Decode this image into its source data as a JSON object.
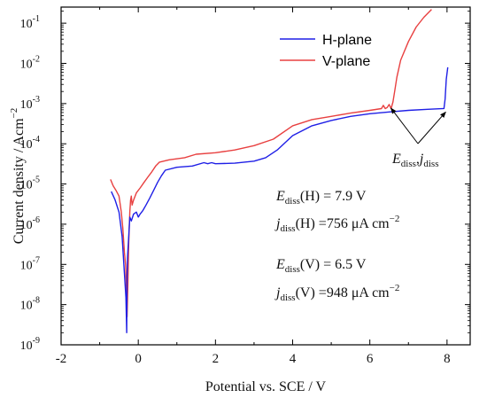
{
  "chart_data": {
    "type": "line",
    "title": "",
    "xlabel": "Potential vs. SCE / V",
    "ylabel": "Current density / Acm",
    "ylabel_sup": "−2",
    "xlim": [
      -2,
      8.6
    ],
    "ylim_log10": [
      -9,
      -0.6
    ],
    "yscale": "log",
    "legend_position": "top-right",
    "x_ticks": [
      -2,
      0,
      2,
      4,
      6,
      8
    ],
    "x_tick_labels": [
      "-2",
      "0",
      "2",
      "4",
      "6",
      "8"
    ],
    "y_tick_exponents": [
      -9,
      -8,
      -7,
      -6,
      -5,
      -4,
      -3,
      -2,
      -1
    ],
    "y_tick_base": "10",
    "y_tick_sups": [
      "-9",
      "-8",
      "-7",
      "-6",
      "-5",
      "-4",
      "-3",
      "-2",
      "-1"
    ],
    "series": [
      {
        "name": "H-plane",
        "color": "#1f1fe6",
        "x": [
          -0.7,
          -0.6,
          -0.5,
          -0.42,
          -0.36,
          -0.32,
          -0.3,
          -0.29,
          -0.28,
          -0.26,
          -0.22,
          -0.18,
          -0.12,
          -0.05,
          0.0,
          0.05,
          0.12,
          0.2,
          0.3,
          0.4,
          0.5,
          0.6,
          0.7,
          1.0,
          1.4,
          1.7,
          1.8,
          1.9,
          2.0,
          2.5,
          3.0,
          3.3,
          3.6,
          4.0,
          4.5,
          5.0,
          5.5,
          6.0,
          6.5,
          7.0,
          7.5,
          7.92,
          7.95,
          7.98,
          8.02
        ],
        "y": [
          6.5e-06,
          4e-06,
          2e-06,
          5e-07,
          6e-08,
          1.5e-08,
          2e-09,
          5e-08,
          1.5e-07,
          3e-07,
          1.5e-06,
          1.2e-06,
          1.8e-06,
          2e-06,
          1.5e-06,
          1.8e-06,
          2.2e-06,
          3e-06,
          4.5e-06,
          7e-06,
          1.1e-05,
          1.6e-05,
          2.2e-05,
          2.6e-05,
          2.8e-05,
          3.4e-05,
          3.2e-05,
          3.4e-05,
          3.2e-05,
          3.3e-05,
          3.7e-05,
          4.5e-05,
          7e-05,
          0.00016,
          0.00028,
          0.00038,
          0.00048,
          0.00056,
          0.00062,
          0.00068,
          0.00072,
          0.000756,
          0.0013,
          0.004,
          0.008
        ]
      },
      {
        "name": "V-plane",
        "color": "#e84040",
        "x": [
          -0.72,
          -0.65,
          -0.58,
          -0.5,
          -0.44,
          -0.4,
          -0.36,
          -0.33,
          -0.31,
          -0.29,
          -0.27,
          -0.25,
          -0.22,
          -0.2,
          -0.18,
          -0.16,
          -0.12,
          -0.05,
          0.05,
          0.15,
          0.25,
          0.35,
          0.45,
          0.55,
          0.8,
          1.2,
          1.5,
          2.0,
          2.5,
          3.0,
          3.5,
          4.0,
          4.5,
          5.0,
          5.5,
          6.0,
          6.3,
          6.35,
          6.4,
          6.45,
          6.5,
          6.55,
          6.6,
          6.65,
          6.7,
          6.8,
          7.0,
          7.2,
          7.4,
          7.6
        ],
        "y": [
          1.3e-05,
          9e-06,
          7e-06,
          5e-06,
          2e-06,
          8e-07,
          2e-07,
          1e-07,
          3e-08,
          5e-09,
          3e-08,
          3e-07,
          2e-06,
          4e-06,
          5e-06,
          3e-06,
          4e-06,
          6e-06,
          8e-06,
          1.1e-05,
          1.5e-05,
          2e-05,
          2.8e-05,
          3.5e-05,
          4e-05,
          4.5e-05,
          5.5e-05,
          6e-05,
          7e-05,
          9e-05,
          0.00013,
          0.00028,
          0.0004,
          0.00048,
          0.00058,
          0.00068,
          0.00075,
          0.0009,
          0.00075,
          0.0008,
          0.000948,
          0.00075,
          0.0011,
          0.0022,
          0.0045,
          0.012,
          0.035,
          0.08,
          0.14,
          0.22
        ]
      }
    ],
    "annotations": {
      "arrow_label_main": "E",
      "arrow_label_sub": "diss",
      "arrow_label_sep": ",",
      "arrow_label_main2": "j",
      "arrow_label_sub2": "diss",
      "arrow_targets": [
        {
          "x": 6.5,
          "y": 0.000948
        },
        {
          "x": 7.92,
          "y": 0.000756
        }
      ],
      "lines": [
        {
          "sym": "E",
          "sub": "diss",
          "rest": "(H) = 7.9 V"
        },
        {
          "sym": "j",
          "sub": "diss",
          "rest": "(H) =756 μA cm",
          "sup": "−2"
        },
        {
          "sym": "E",
          "sub": "diss",
          "rest": "(V) = 6.5 V"
        },
        {
          "sym": "j",
          "sub": "diss",
          "rest": "(V) =948 μA cm",
          "sup": "−2"
        }
      ]
    }
  }
}
